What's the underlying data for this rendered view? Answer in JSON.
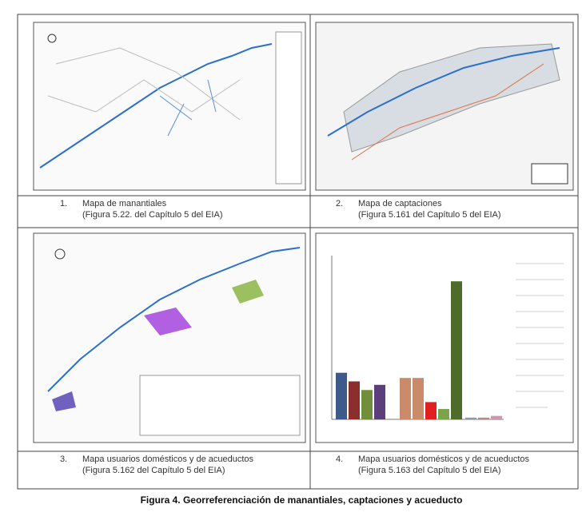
{
  "panels": [
    {
      "number": "1.",
      "title": "Mapa de manantiales",
      "source": "(Figura 5.22. del Capítulo 5 del EIA)"
    },
    {
      "number": "2.",
      "title": "Mapa de captaciones",
      "source": "(Figura 5.161 del Capítulo 5 del EIA)"
    },
    {
      "number": "3.",
      "title": "Mapa usuarios domésticos y de acueductos",
      "source": "(Figura 5.162 del Capítulo 5 del EIA)"
    },
    {
      "number": "4.",
      "title": "Mapa usuarios domésticos y de acueductos",
      "source": "(Figura 5.163 del Capítulo 5 del EIA)"
    }
  ],
  "footer": "Figura 4. Georreferenciación de manantiales, captaciones y acueducto",
  "chart_data": {
    "type": "bar",
    "values": [
      27,
      22,
      17,
      20,
      24,
      24,
      10,
      6,
      80,
      1,
      1,
      2
    ],
    "colors": [
      "#3d5a8a",
      "#8b2e2e",
      "#6f8f3a",
      "#5b3f7a",
      "#c98b6a",
      "#c98b6a",
      "#e02020",
      "#7aa34a",
      "#4f6b2a",
      "#8899bb",
      "#bb8888",
      "#cc99aa"
    ],
    "ylim": [
      0,
      100
    ]
  }
}
